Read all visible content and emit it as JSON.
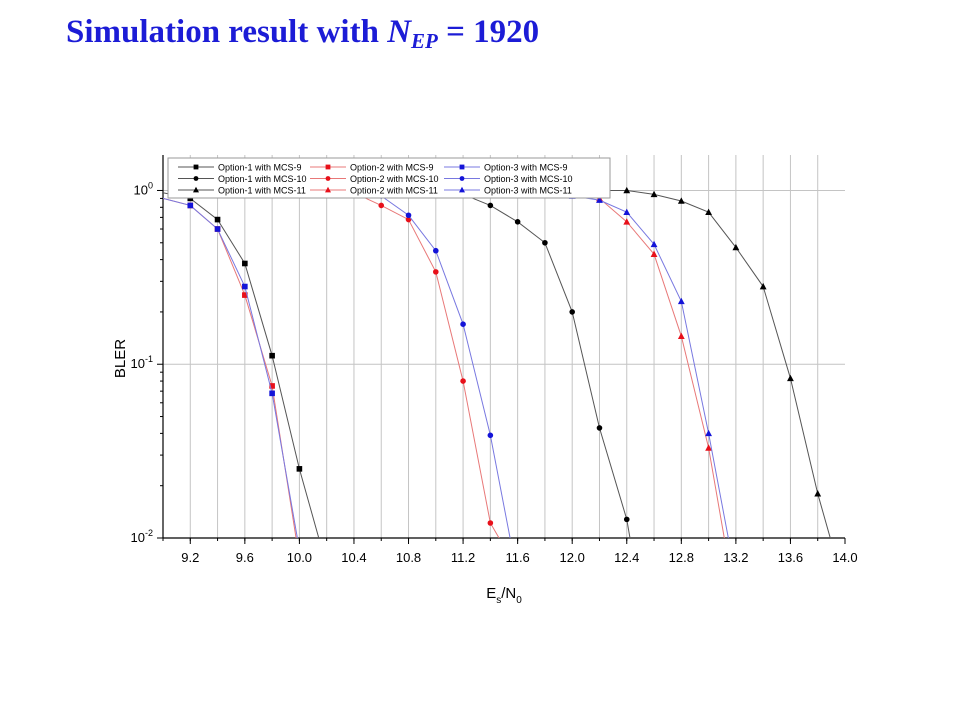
{
  "slide": {
    "title_prefix": "Simulation result with ",
    "title_var": "N",
    "title_sub": "EP",
    "title_suffix": " = 1920"
  },
  "colors": {
    "title": "#1c1cd6",
    "option1": "#000000",
    "option2": "#e8101a",
    "option3": "#1414d8",
    "line1": "#555555",
    "line2": "#e87878",
    "line3": "#7878e0",
    "grid": "#c4c4c4"
  },
  "chart_data": {
    "type": "line",
    "xlabel_main": "E",
    "xlabel_sub1": "s",
    "xlabel_mid": "/N",
    "xlabel_sub2": "0",
    "ylabel": "BLER",
    "xlim": [
      9.0,
      14.0
    ],
    "ylim": [
      0.01,
      1.6
    ],
    "yscale": "log",
    "grid": true,
    "legend_position": "top",
    "x_ticks": [
      "9.2",
      "9.6",
      "10.0",
      "10.4",
      "10.8",
      "11.2",
      "11.6",
      "12.0",
      "12.4",
      "12.8",
      "13.2",
      "13.6",
      "14.0"
    ],
    "y_ticks": [
      {
        "base": "10",
        "exp": "0",
        "value": 1
      },
      {
        "base": "10",
        "exp": "-1",
        "value": 0.1
      },
      {
        "base": "10",
        "exp": "-2",
        "value": 0.01
      }
    ],
    "series": [
      {
        "name": "Option-1 with MCS-9",
        "option": 1,
        "marker": "square",
        "x": [
          9.0,
          9.2,
          9.4,
          9.6,
          9.8,
          10.0,
          10.15
        ],
        "y": [
          0.97,
          0.9,
          0.68,
          0.38,
          0.112,
          0.025,
          0.0095
        ]
      },
      {
        "name": "Option-2 with MCS-9",
        "option": 2,
        "marker": "square",
        "x": [
          9.0,
          9.2,
          9.4,
          9.6,
          9.8,
          9.98
        ],
        "y": [
          0.9,
          0.82,
          0.6,
          0.25,
          0.075,
          0.0095
        ]
      },
      {
        "name": "Option-3 with MCS-9",
        "option": 3,
        "marker": "square",
        "x": [
          9.0,
          9.2,
          9.4,
          9.6,
          9.8,
          9.99
        ],
        "y": [
          0.9,
          0.82,
          0.6,
          0.28,
          0.068,
          0.0095
        ]
      },
      {
        "name": "Option-1 with MCS-10",
        "option": 1,
        "marker": "circle",
        "x": [
          10.4,
          10.6,
          10.8,
          11.0,
          11.2,
          11.4,
          11.6,
          11.8,
          12.0,
          12.2,
          12.4,
          12.5
        ],
        "y": [
          1.0,
          1.0,
          1.0,
          1.0,
          0.95,
          0.82,
          0.66,
          0.5,
          0.2,
          0.043,
          0.0128,
          0.0045
        ]
      },
      {
        "name": "Option-2 with MCS-10",
        "option": 2,
        "marker": "circle",
        "x": [
          10.4,
          10.6,
          10.8,
          11.0,
          11.2,
          11.4,
          11.48
        ],
        "y": [
          0.97,
          0.82,
          0.68,
          0.34,
          0.08,
          0.0122,
          0.0095
        ]
      },
      {
        "name": "Option-3 with MCS-10",
        "option": 3,
        "marker": "circle",
        "x": [
          10.4,
          10.6,
          10.8,
          11.0,
          11.2,
          11.4,
          11.55
        ],
        "y": [
          0.98,
          0.93,
          0.72,
          0.45,
          0.17,
          0.039,
          0.0095
        ]
      },
      {
        "name": "Option-1 with MCS-11",
        "option": 1,
        "marker": "triangle",
        "x": [
          12.0,
          12.2,
          12.4,
          12.6,
          12.8,
          13.0,
          13.2,
          13.4,
          13.6,
          13.8,
          13.9
        ],
        "y": [
          1.0,
          1.0,
          1.0,
          0.95,
          0.87,
          0.75,
          0.47,
          0.28,
          0.083,
          0.018,
          0.0095
        ]
      },
      {
        "name": "Option-2 with MCS-11",
        "option": 2,
        "marker": "triangle",
        "x": [
          12.0,
          12.2,
          12.4,
          12.6,
          12.8,
          13.0,
          13.12
        ],
        "y": [
          0.97,
          0.9,
          0.66,
          0.43,
          0.145,
          0.033,
          0.0095
        ]
      },
      {
        "name": "Option-3 with MCS-11",
        "option": 3,
        "marker": "triangle",
        "x": [
          12.0,
          12.2,
          12.4,
          12.6,
          12.8,
          13.0,
          13.15
        ],
        "y": [
          0.93,
          0.88,
          0.75,
          0.49,
          0.23,
          0.04,
          0.0095
        ]
      }
    ]
  }
}
